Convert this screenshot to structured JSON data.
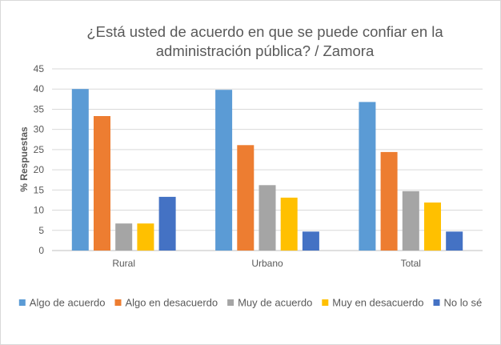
{
  "chart_data": {
    "type": "bar",
    "title_lines": [
      "¿Está usted de acuerdo en que se puede confiar en la",
      "administración pública? / Zamora"
    ],
    "ylabel": "% Respuestas",
    "xlabel": "",
    "ylim": [
      0,
      45
    ],
    "yticks": [
      0,
      5,
      10,
      15,
      20,
      25,
      30,
      35,
      40,
      45
    ],
    "grid": true,
    "legend_position": "bottom",
    "categories": [
      "Rural",
      "Urbano",
      "Total"
    ],
    "series": [
      {
        "name": "Algo de acuerdo",
        "color": "#5b9bd5",
        "values": [
          40.0,
          39.8,
          36.8
        ]
      },
      {
        "name": "Algo en desacuerdo",
        "color": "#ed7d31",
        "values": [
          33.3,
          26.1,
          24.4
        ]
      },
      {
        "name": "Muy de acuerdo",
        "color": "#a5a5a5",
        "values": [
          6.7,
          16.2,
          14.7
        ]
      },
      {
        "name": "Muy en desacuerdo",
        "color": "#ffc000",
        "values": [
          6.7,
          13.1,
          11.9
        ]
      },
      {
        "name": "No lo sé",
        "color": "#4472c4",
        "values": [
          13.3,
          4.7,
          4.7
        ]
      }
    ]
  }
}
